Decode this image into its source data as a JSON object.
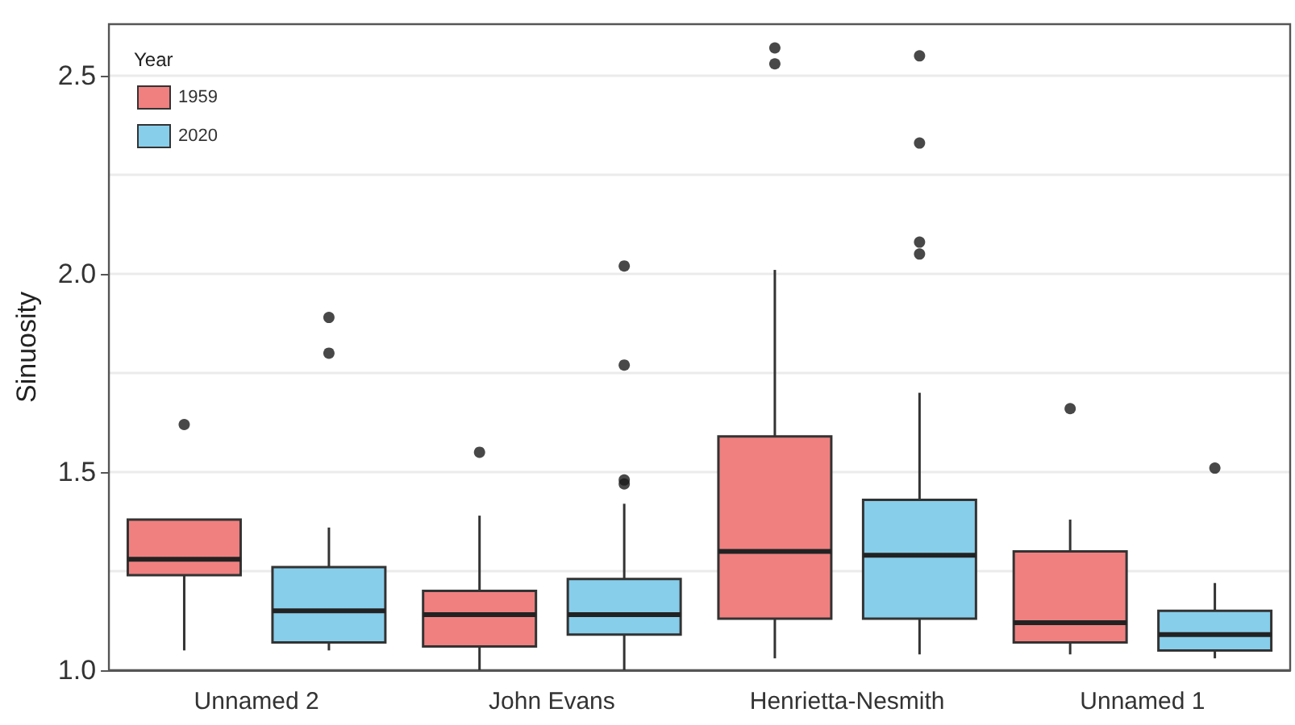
{
  "chart_data": {
    "type": "box",
    "ylabel": "Sinuosity",
    "legend_title": "Year",
    "legend": "top left",
    "grid": "y",
    "categories": [
      "Unnamed 2",
      "John Evans",
      "Henrietta-Nesmith",
      "Unnamed 1"
    ],
    "ylim": [
      1.0,
      2.63
    ],
    "yticks": [
      {
        "value": 1.0,
        "label": "1.0"
      },
      {
        "value": 1.25,
        "label": null
      },
      1.5,
      {
        "value": 1.75,
        "label": null
      },
      {
        "value": 2.0,
        "label": "2.0"
      },
      {
        "value": 2.25,
        "label": null
      },
      2.5
    ],
    "series": [
      {
        "name": "1959",
        "color": "#f08080",
        "boxes": [
          {
            "low": 1.05,
            "q1": 1.24,
            "median": 1.28,
            "q3": 1.38,
            "high": 1.38,
            "outliers": [
              1.62
            ]
          },
          {
            "low": 1.0,
            "q1": 1.06,
            "median": 1.14,
            "q3": 1.2,
            "high": 1.39,
            "outliers": [
              1.55
            ]
          },
          {
            "low": 1.03,
            "q1": 1.13,
            "median": 1.3,
            "q3": 1.59,
            "high": 2.01,
            "outliers": [
              2.57,
              2.53
            ]
          },
          {
            "low": 1.04,
            "q1": 1.07,
            "median": 1.12,
            "q3": 1.3,
            "high": 1.38,
            "outliers": [
              1.66
            ]
          }
        ]
      },
      {
        "name": "2020",
        "color": "#87ceeb",
        "boxes": [
          {
            "low": 1.05,
            "q1": 1.07,
            "median": 1.15,
            "q3": 1.26,
            "high": 1.36,
            "outliers": [
              1.89,
              1.8
            ]
          },
          {
            "low": 1.0,
            "q1": 1.09,
            "median": 1.14,
            "q3": 1.23,
            "high": 1.42,
            "outliers": [
              2.02,
              1.77,
              1.48,
              1.47
            ]
          },
          {
            "low": 1.04,
            "q1": 1.13,
            "median": 1.29,
            "q3": 1.43,
            "high": 1.7,
            "outliers": [
              2.55,
              2.33,
              2.08,
              2.05
            ]
          },
          {
            "low": 1.03,
            "q1": 1.05,
            "median": 1.09,
            "q3": 1.15,
            "high": 1.22,
            "outliers": [
              1.51
            ]
          }
        ]
      }
    ]
  }
}
